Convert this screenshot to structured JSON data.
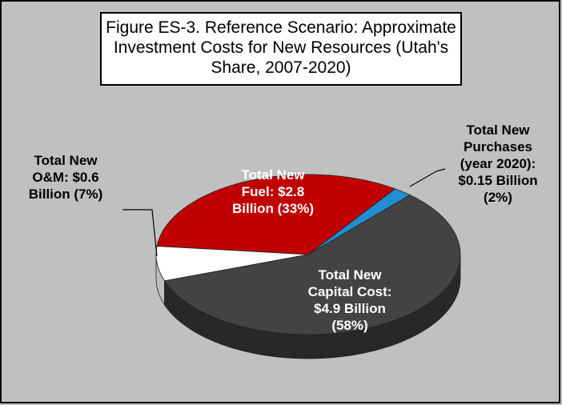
{
  "chart_data": {
    "type": "pie",
    "title": "Figure ES-3. Reference Scenario: Approximate Investment Costs for New Resources (Utah's Share, 2007-2020)",
    "labels": [
      "Total New Purchases (year 2020): $0.15 Billion (2%)",
      "Total New Fuel: $2.8 Billion (33%)",
      "Total New O&M: $0.6 Billion (7%)",
      "Total New Capital Cost: $4.9 Billion (58%)"
    ],
    "values": [
      2,
      33,
      7,
      58
    ],
    "colors": [
      "#1f8fd2",
      "#c00000",
      "#ffffff",
      "#434343"
    ]
  }
}
